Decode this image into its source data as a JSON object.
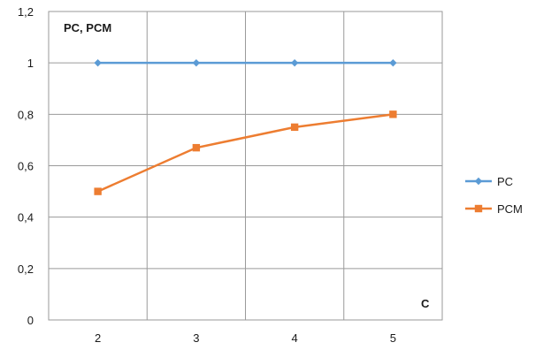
{
  "chart_data": {
    "type": "line",
    "x": [
      2,
      3,
      4,
      5
    ],
    "xticks": [
      "2",
      "3",
      "4",
      "5"
    ],
    "yticks": [
      "0",
      "0,2",
      "0,4",
      "0,6",
      "0,8",
      "1",
      "1,2"
    ],
    "ylim": [
      0,
      1.2
    ],
    "ylabel": "PC, PCM",
    "xlabel": "C",
    "grid": true,
    "legend": "right",
    "series": [
      {
        "name": "PC",
        "values": [
          1,
          1,
          1,
          1
        ],
        "color": "#5b9bd5",
        "marker": "diamond"
      },
      {
        "name": "PCM",
        "values": [
          0.5,
          0.67,
          0.75,
          0.8
        ],
        "color": "#ed7d31",
        "marker": "square"
      }
    ]
  }
}
